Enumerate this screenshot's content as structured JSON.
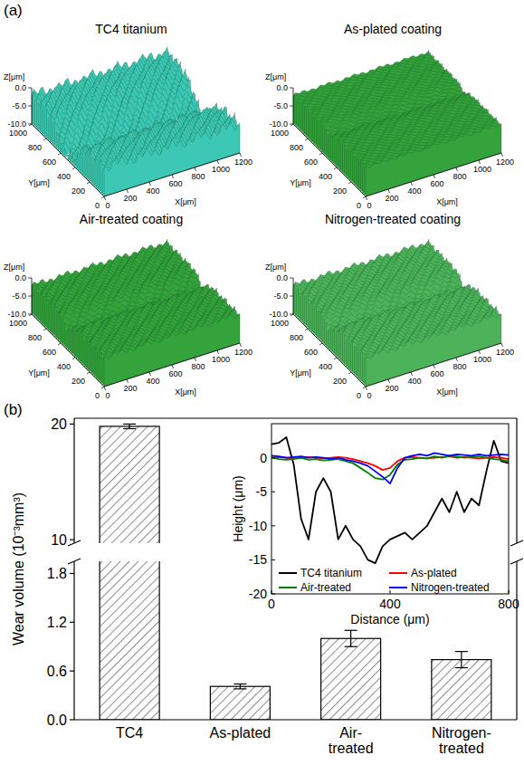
{
  "panel_labels": [
    "(a)",
    "(b)"
  ],
  "chart_data": [
    {
      "type": "surface3d",
      "title": "TC4 titanium",
      "color": "#3cc8b4",
      "xlabel": "X[μm]",
      "ylabel": "Y[μm]",
      "zlabel": "Z[μm]",
      "xlim": [
        0,
        1200
      ],
      "xticks": [
        0,
        200,
        400,
        600,
        800,
        1000,
        1200
      ],
      "ylim": [
        0,
        1000
      ],
      "yticks": [
        0,
        200,
        400,
        600,
        800,
        1000
      ],
      "zlim": [
        -10,
        0
      ],
      "zticks": [
        {
          "value": 0,
          "label": "0.0"
        },
        {
          "value": -5,
          "label": "-5.0"
        },
        {
          "value": -10,
          "label": "-10.0"
        }
      ]
    },
    {
      "type": "surface3d",
      "title": "As-plated coating",
      "color": "#34a33c",
      "xlabel": "X[μm]",
      "ylabel": "Y[μm]",
      "zlabel": "Z[μm]",
      "xlim": [
        0,
        1200
      ],
      "xticks": [
        0,
        200,
        400,
        600,
        800,
        1000,
        1200
      ],
      "ylim": [
        0,
        1000
      ],
      "yticks": [
        0,
        200,
        400,
        600,
        800,
        1000
      ],
      "zlim": [
        -10,
        0
      ],
      "zticks": [
        {
          "value": 0,
          "label": "0.0"
        },
        {
          "value": -5,
          "label": "-5.0"
        },
        {
          "value": -10,
          "label": "-10.0"
        }
      ]
    },
    {
      "type": "surface3d",
      "title": "Air-treated coating",
      "color": "#34a33c",
      "xlabel": "X[μm]",
      "ylabel": "Y[μm]",
      "zlabel": "Z[μm]",
      "xlim": [
        0,
        1200
      ],
      "xticks": [
        0,
        200,
        400,
        600,
        800,
        1000,
        1200
      ],
      "ylim": [
        0,
        1000
      ],
      "yticks": [
        0,
        200,
        400,
        600,
        800,
        1000
      ],
      "zlim": [
        -10,
        0
      ],
      "zticks": [
        {
          "value": 0,
          "label": "0.0"
        },
        {
          "value": -5,
          "label": "-5.0"
        },
        {
          "value": -10,
          "label": "-10.0"
        }
      ]
    },
    {
      "type": "surface3d",
      "title": "Nitrogen-treated coating",
      "color": "#4cb35a",
      "xlabel": "X[μm]",
      "ylabel": "Y[μm]",
      "zlabel": "Z[μm]",
      "xlim": [
        0,
        1200
      ],
      "xticks": [
        0,
        200,
        400,
        600,
        800,
        1000,
        1200
      ],
      "ylim": [
        0,
        1000
      ],
      "yticks": [
        0,
        200,
        400,
        600,
        800,
        1000
      ],
      "zlim": [
        -10,
        0
      ],
      "zticks": [
        {
          "value": 0,
          "label": "0.0"
        },
        {
          "value": -5,
          "label": "-5.0"
        },
        {
          "value": -10,
          "label": "-10.0"
        }
      ]
    },
    {
      "type": "bar",
      "ylabel": "Wear volume (10⁻³mm³)",
      "categories": [
        "TC4",
        "As-plated",
        "Air-treated",
        "Nitrogen-treated"
      ],
      "values": [
        19.8,
        0.41,
        1.0,
        0.74
      ],
      "errors": [
        0.2,
        0.03,
        0.1,
        0.1
      ],
      "color": "#000000",
      "ylim": [
        0,
        20.5
      ],
      "y_break": [
        1.95,
        9.7
      ],
      "yticks": [
        {
          "value": 0,
          "label": "0.0"
        },
        0.6,
        1.2,
        1.8,
        10,
        20
      ]
    },
    {
      "type": "line",
      "xlabel": "Distance (μm)",
      "ylabel": "Height (μm)",
      "x": [
        0,
        25,
        50,
        75,
        100,
        125,
        150,
        175,
        200,
        225,
        250,
        275,
        300,
        325,
        350,
        375,
        400,
        425,
        450,
        475,
        500,
        525,
        550,
        575,
        600,
        625,
        650,
        675,
        700,
        725,
        750,
        775,
        800
      ],
      "xlim": [
        0,
        800
      ],
      "xticks": [
        0,
        400,
        800
      ],
      "ylim": [
        -20,
        5
      ],
      "yticks": [
        -20,
        -15,
        -10,
        -5,
        0
      ],
      "legend": "lower left",
      "series": [
        {
          "name": "TC4 titanium",
          "color": "#000000",
          "values": [
            2,
            2.2,
            3,
            -1,
            -9,
            -12,
            -5,
            -3,
            -5,
            -12,
            -10,
            -12,
            -13,
            -15,
            -15.5,
            -13,
            -12,
            -11.5,
            -11,
            -12,
            -11,
            -10,
            -8,
            -6,
            -8,
            -5,
            -8,
            -6,
            -7,
            -2,
            2.5,
            -0.5,
            -0.8
          ]
        },
        {
          "name": "As-plated",
          "color": "#ff0000",
          "values": [
            0,
            0.1,
            0,
            -0.1,
            0,
            0.1,
            0,
            -0.1,
            0,
            0.1,
            0,
            -0.2,
            -0.5,
            -0.8,
            -1.2,
            -1.8,
            -1.5,
            -0.5,
            0,
            0.1,
            0,
            -0.1,
            0,
            0.1,
            0.2,
            0,
            0.1,
            0,
            -0.1,
            0,
            0.1,
            0,
            -0.2
          ]
        },
        {
          "name": "Air-treated",
          "color": "#008000",
          "values": [
            0,
            -0.2,
            -0.3,
            -0.2,
            0,
            -0.3,
            -0.2,
            -0.4,
            -0.3,
            -0.2,
            -0.5,
            -0.8,
            -1.5,
            -2.2,
            -3,
            -3.2,
            -2.5,
            -1,
            -0.3,
            -0.2,
            0,
            -0.1,
            0.2,
            0,
            0.3,
            0.2,
            0,
            0.1,
            0.2,
            0,
            -0.2,
            -0.3,
            -0.5
          ]
        },
        {
          "name": "Nitrogen-treated",
          "color": "#0000ff",
          "values": [
            0.3,
            0.2,
            0,
            0.1,
            0.2,
            0,
            0.1,
            0,
            -0.2,
            0,
            -0.3,
            -0.5,
            -0.8,
            -1.2,
            -2,
            -2.8,
            -3.8,
            -1.5,
            0,
            0.3,
            0.5,
            0.3,
            0.7,
            0.5,
            0.3,
            0.5,
            0.4,
            0.3,
            0.5,
            0.3,
            0.4,
            0.5,
            0.4
          ]
        }
      ]
    }
  ]
}
